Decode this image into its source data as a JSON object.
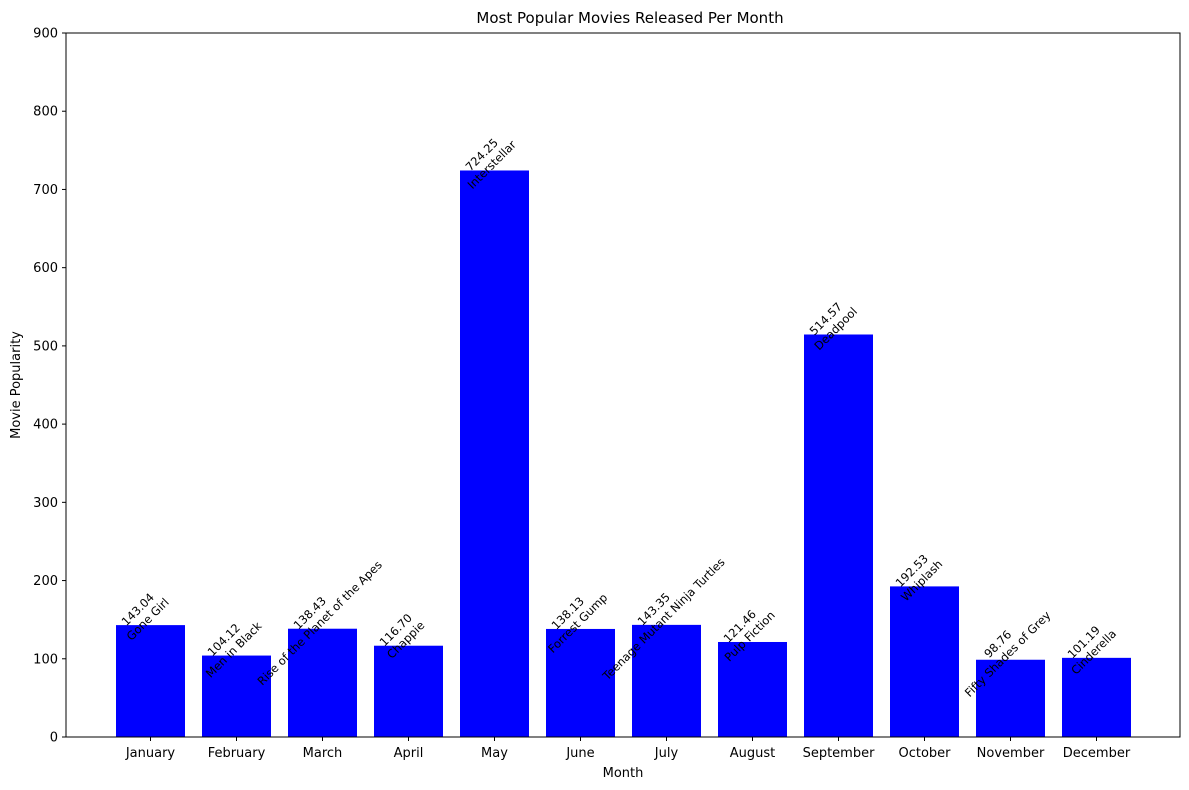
{
  "chart_data": {
    "type": "bar",
    "title": "Most Popular Movies Released Per Month",
    "xlabel": "Month",
    "ylabel": "Movie Popularity",
    "ylim": [
      0,
      900
    ],
    "yticks": [
      "0",
      "100",
      "200",
      "300",
      "400",
      "500",
      "600",
      "700",
      "800",
      "900"
    ],
    "grid": false,
    "bar_color": "#0000ff",
    "categories": [
      "January",
      "February",
      "March",
      "April",
      "May",
      "June",
      "July",
      "August",
      "September",
      "October",
      "November",
      "December"
    ],
    "values": [
      143.04,
      104.12,
      138.43,
      116.7,
      724.25,
      138.13,
      143.35,
      121.46,
      514.57,
      192.53,
      98.76,
      101.19
    ],
    "value_labels": [
      "143.04",
      "104.12",
      "138.43",
      "116.70",
      "724.25",
      "138.13",
      "143.35",
      "121.46",
      "514.57",
      "192.53",
      "98.76",
      "101.19"
    ],
    "movie_labels": [
      "Gone Girl",
      "Men in Black",
      "Rise of the Planet of the Apes",
      "Chappie",
      "Interstellar",
      "Forrest Gump",
      "Teenage Mutant Ninja Turtles",
      "Pulp Fiction",
      "Deadpool",
      "Whiplash",
      "Fifty Shades of Grey",
      "Cinderella"
    ]
  }
}
